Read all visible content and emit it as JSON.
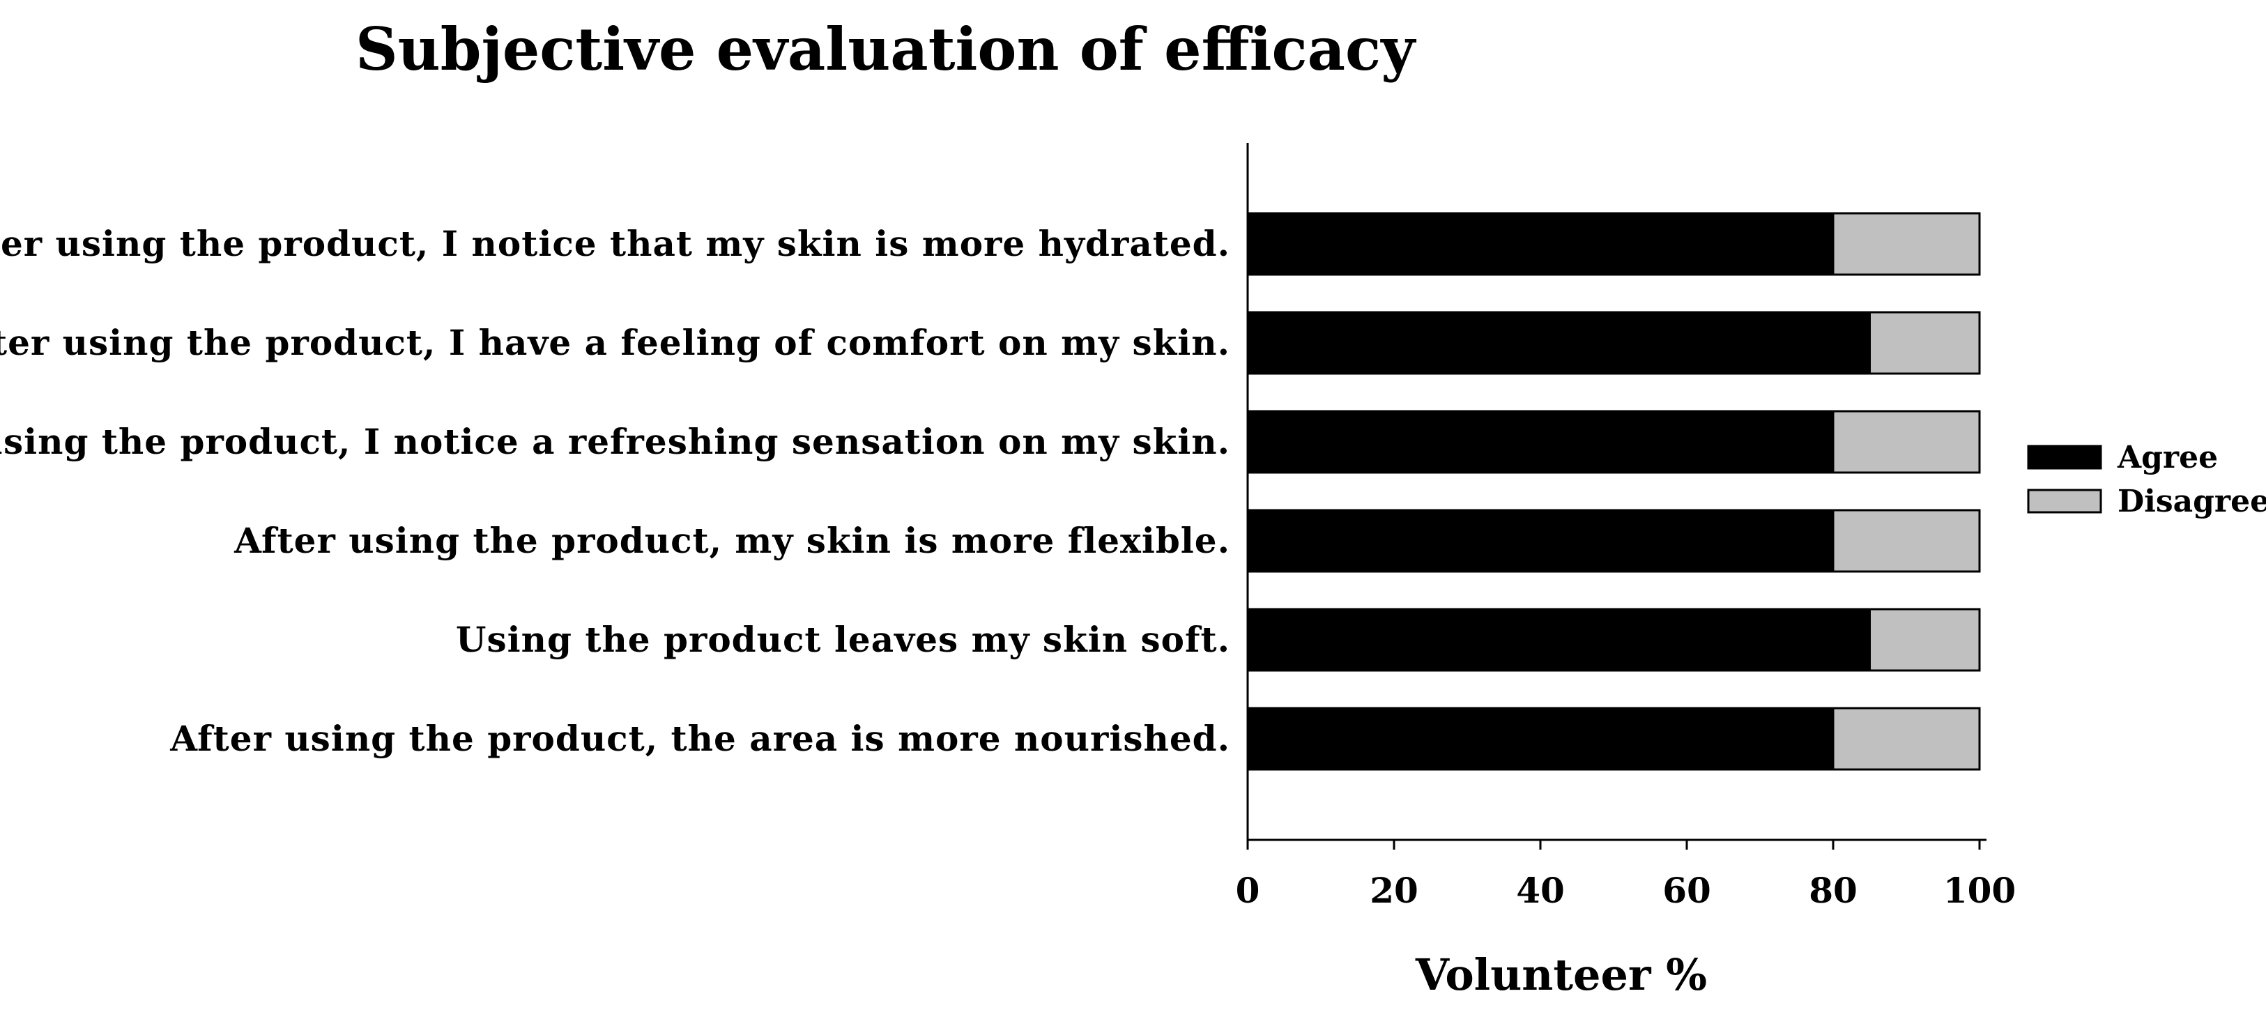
{
  "chart_data": {
    "type": "bar",
    "orientation": "horizontal",
    "stacked": true,
    "title": "Subjective evaluation of efficacy",
    "xlabel": "Volunteer %",
    "ylabel": "",
    "xlim": [
      0,
      100
    ],
    "xticks": [
      0,
      20,
      40,
      60,
      80,
      100
    ],
    "grid": false,
    "legend_position": "right",
    "categories": [
      "After using the product, I notice that my skin is more hydrated.",
      "After using the product, I have a feeling of comfort on my skin.",
      "After using the product, I notice a refreshing sensation on my skin.",
      "After using the product, my skin is more flexible.",
      "Using the product leaves my skin soft.",
      "After using the product, the area is more nourished."
    ],
    "series": [
      {
        "name": "Agree",
        "color": "#000000",
        "values": [
          80,
          85,
          80,
          80,
          85,
          80
        ]
      },
      {
        "name": "Disagree",
        "color": "#c0c0c0",
        "values": [
          20,
          15,
          20,
          20,
          15,
          20
        ]
      }
    ]
  }
}
